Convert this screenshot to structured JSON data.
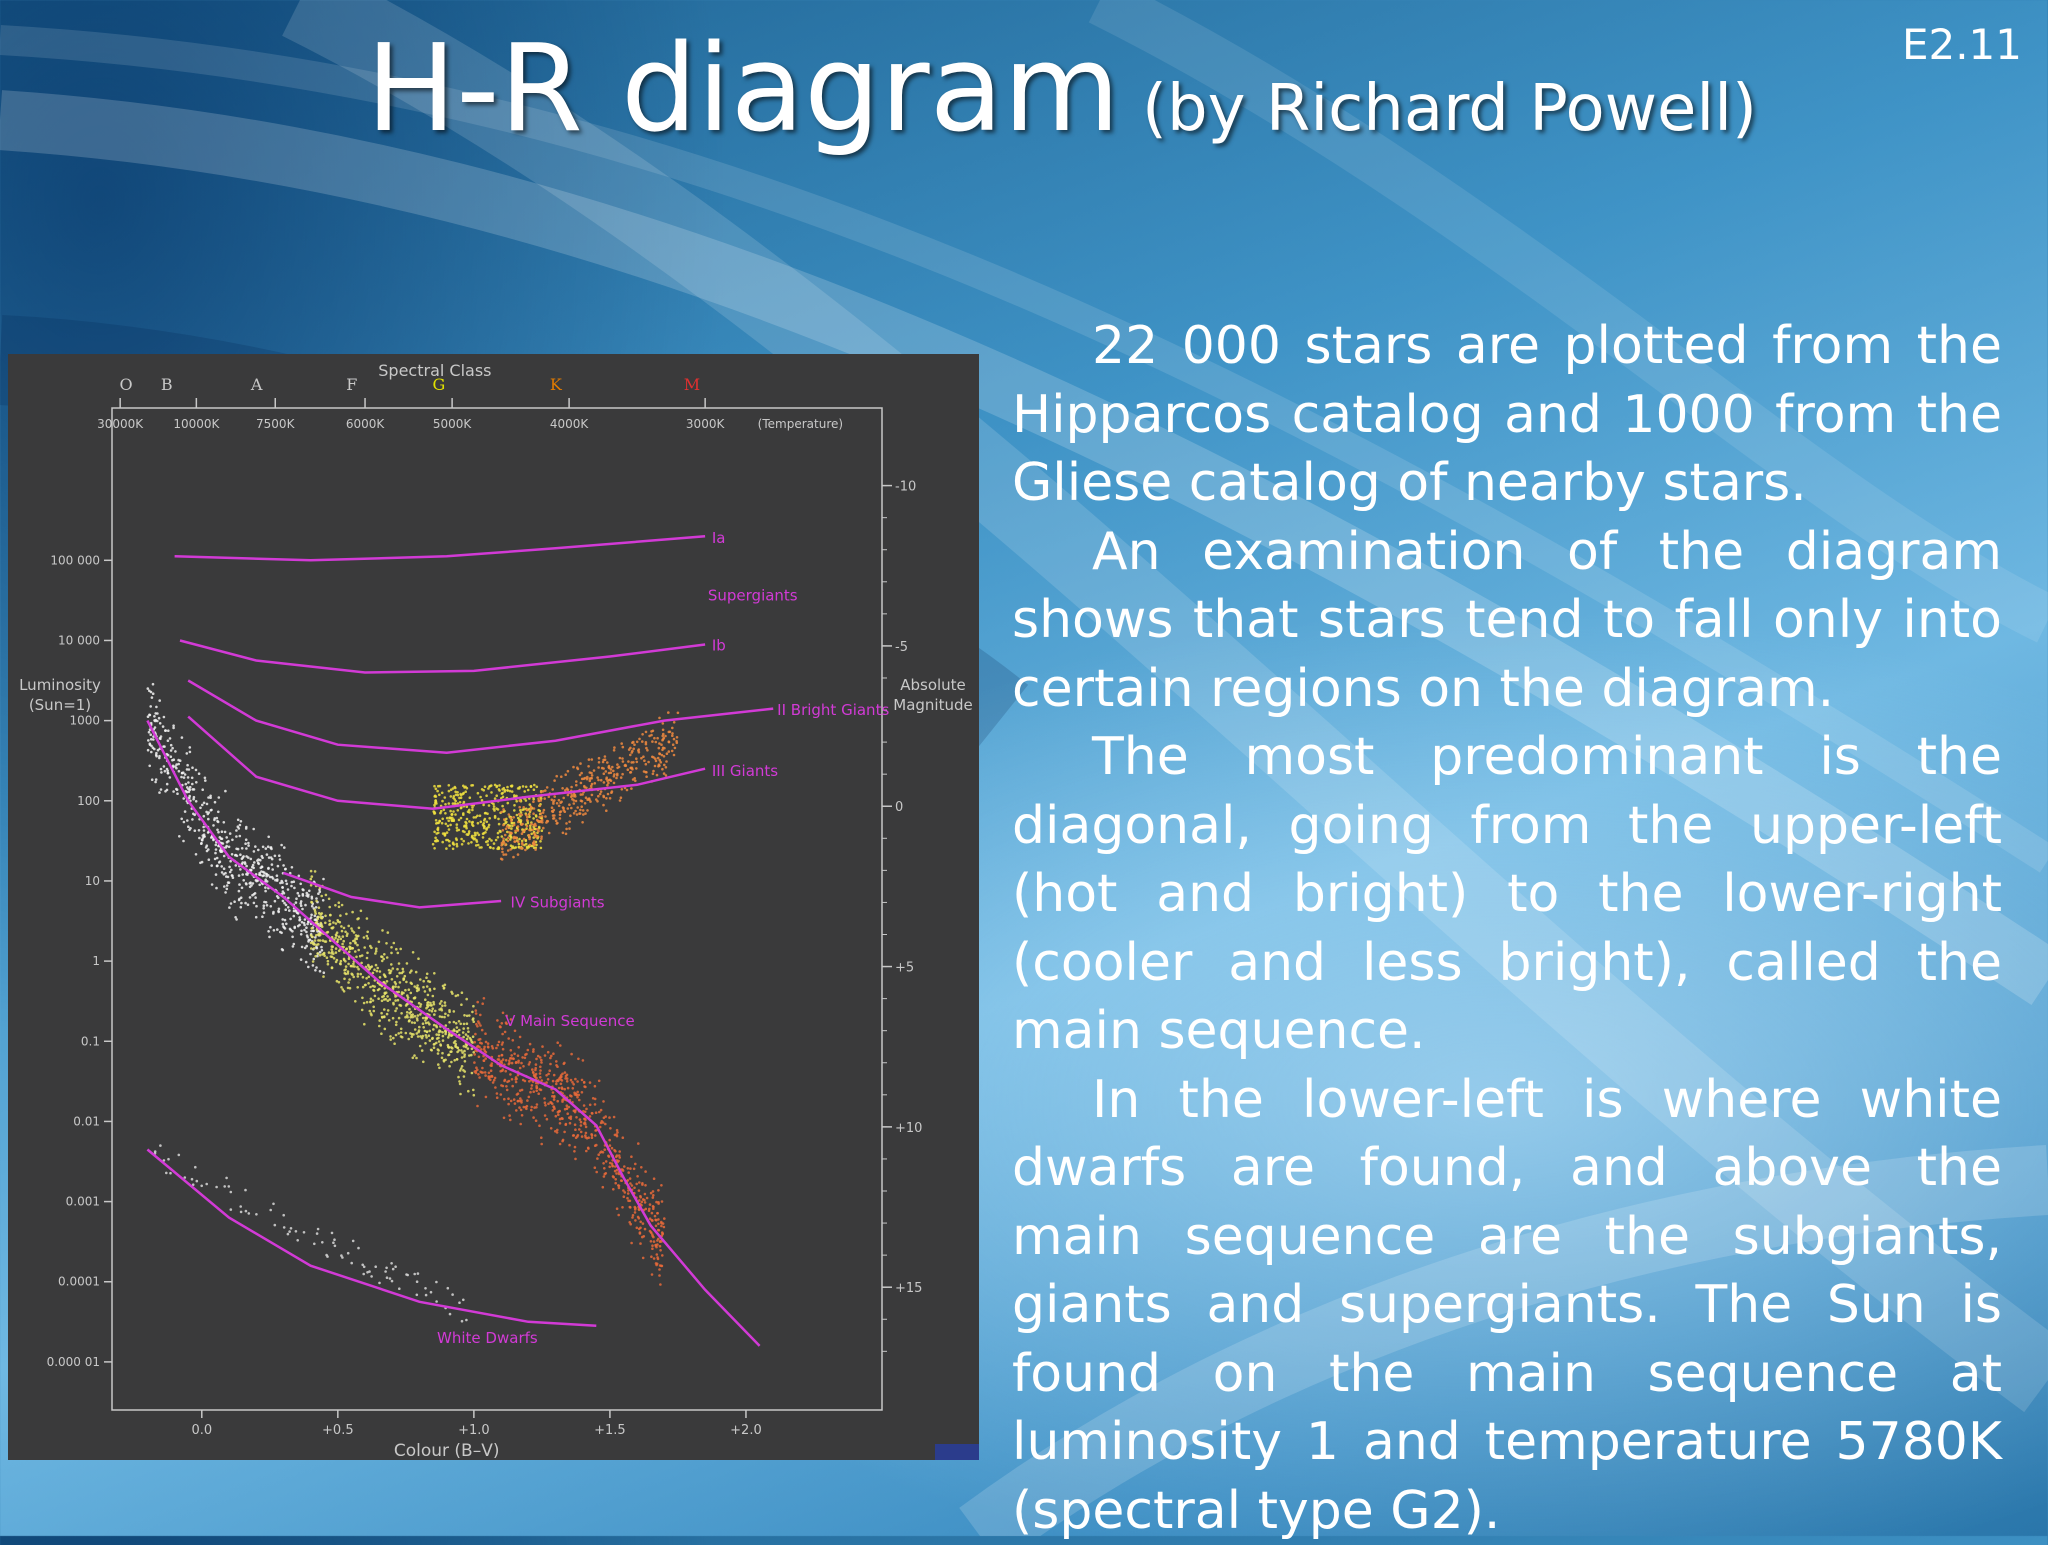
{
  "slide": {
    "id": "E2.11",
    "title": "H-R diagram",
    "subtitle": "(by Richard Powell)"
  },
  "description": [
    "22 000 stars are plotted from the Hipparcos catalog and 1000 from the Gliese catalog of nearby stars.",
    "An examination of the diagram shows that stars tend to fall only into certain regions on the diagram.",
    "The most predominant is the diagonal, going from the upper-left (hot and bright) to the lower-right (cooler and less bright), called the main sequence.",
    "In the lower-left is where white dwarfs are found, and above the main sequence are the subgiants, giants and supergiants. The Sun is found on the main sequence at luminosity 1 and temperature 5780K (spectral type G2)."
  ],
  "colors": {
    "panel": "#3a3a3b",
    "axis": "#c8c8c8",
    "curve": "#d23ad6",
    "region_label": "#d23ad6",
    "spectral_letters": [
      "#c8c8c8",
      "#c8c8c8",
      "#c8c8c8",
      "#c8c8c8",
      "#e0e000",
      "#e07a00",
      "#e03030"
    ]
  },
  "chart_data": {
    "type": "scatter",
    "title": "Spectral Class",
    "xlabel": "Colour (B–V)",
    "ylabel": "Luminosity (Sun=1)",
    "y2label": "Absolute Magnitude",
    "xlim": [
      -0.33,
      2.5
    ],
    "ylim_log10": [
      -5.6,
      6.9
    ],
    "grid": false,
    "spectral_classes": [
      {
        "label": "O",
        "x": -0.33
      },
      {
        "label": "B",
        "x": -0.18
      },
      {
        "label": "A",
        "x": 0.15
      },
      {
        "label": "F",
        "x": 0.5
      },
      {
        "label": "G",
        "x": 0.82
      },
      {
        "label": "K",
        "x": 1.25
      },
      {
        "label": "M",
        "x": 1.75
      }
    ],
    "temperature_ticks": [
      {
        "label": "30000K",
        "x": -0.3
      },
      {
        "label": "10000K",
        "x": -0.02
      },
      {
        "label": "7500K",
        "x": 0.27
      },
      {
        "label": "6000K",
        "x": 0.6
      },
      {
        "label": "5000K",
        "x": 0.92
      },
      {
        "label": "4000K",
        "x": 1.35
      },
      {
        "label": "3000K",
        "x": 1.85
      }
    ],
    "temperature_axis_label": "(Temperature)",
    "luminosity_ticks": [
      {
        "label": "100 000",
        "log10": 5
      },
      {
        "label": "10 000",
        "log10": 4
      },
      {
        "label": "1000",
        "log10": 3
      },
      {
        "label": "100",
        "log10": 2
      },
      {
        "label": "10",
        "log10": 1
      },
      {
        "label": "1",
        "log10": 0
      },
      {
        "label": "0.1",
        "log10": -1
      },
      {
        "label": "0.01",
        "log10": -2
      },
      {
        "label": "0.001",
        "log10": -3
      },
      {
        "label": "0.0001",
        "log10": -4
      },
      {
        "label": "0.000 01",
        "log10": -5
      }
    ],
    "magnitude_ticks": [
      {
        "label": "-10",
        "mag": -10
      },
      {
        "label": "-5",
        "mag": -5
      },
      {
        "label": "0",
        "mag": 0
      },
      {
        "label": "+5",
        "mag": 5
      },
      {
        "label": "+10",
        "mag": 10
      },
      {
        "label": "+15",
        "mag": 15
      }
    ],
    "colour_ticks": [
      {
        "label": "0.0",
        "x": 0.0
      },
      {
        "label": "+0.5",
        "x": 0.5
      },
      {
        "label": "+1.0",
        "x": 1.0
      },
      {
        "label": "+1.5",
        "x": 1.5
      },
      {
        "label": "+2.0",
        "x": 2.0
      }
    ],
    "series": [
      {
        "name": "Ia",
        "label": "Ia",
        "points": [
          [
            -0.1,
            5.05
          ],
          [
            0.4,
            5.0
          ],
          [
            0.9,
            5.05
          ],
          [
            1.3,
            5.15
          ],
          [
            1.85,
            5.3
          ]
        ]
      },
      {
        "name": "Ib",
        "label": "Ib",
        "points": [
          [
            -0.08,
            4.0
          ],
          [
            0.2,
            3.75
          ],
          [
            0.6,
            3.6
          ],
          [
            1.0,
            3.62
          ],
          [
            1.5,
            3.8
          ],
          [
            1.85,
            3.95
          ]
        ]
      },
      {
        "name": "II Bright Giants",
        "label": "II Bright Giants",
        "points": [
          [
            -0.05,
            3.5
          ],
          [
            0.2,
            3.0
          ],
          [
            0.5,
            2.7
          ],
          [
            0.9,
            2.6
          ],
          [
            1.3,
            2.75
          ],
          [
            1.7,
            3.0
          ],
          [
            2.1,
            3.15
          ]
        ]
      },
      {
        "name": "III Giants",
        "label": "III   Giants",
        "points": [
          [
            -0.05,
            3.05
          ],
          [
            0.2,
            2.3
          ],
          [
            0.5,
            2.0
          ],
          [
            0.85,
            1.9
          ],
          [
            1.2,
            2.05
          ],
          [
            1.6,
            2.2
          ],
          [
            1.85,
            2.4
          ]
        ]
      },
      {
        "name": "IV Subgiants",
        "label": "IV Subgiants",
        "points": [
          [
            0.3,
            1.1
          ],
          [
            0.55,
            0.8
          ],
          [
            0.8,
            0.67
          ],
          [
            1.1,
            0.75
          ]
        ]
      },
      {
        "name": "V Main Sequence",
        "label": "V Main Sequence",
        "points": [
          [
            -0.2,
            3.0
          ],
          [
            -0.05,
            2.0
          ],
          [
            0.1,
            1.3
          ],
          [
            0.3,
            0.8
          ],
          [
            0.5,
            0.2
          ],
          [
            0.65,
            -0.25
          ],
          [
            0.9,
            -0.85
          ],
          [
            1.1,
            -1.3
          ],
          [
            1.3,
            -1.6
          ],
          [
            1.45,
            -2.05
          ],
          [
            1.55,
            -2.7
          ],
          [
            1.65,
            -3.3
          ],
          [
            1.85,
            -4.1
          ],
          [
            2.05,
            -4.8
          ]
        ]
      },
      {
        "name": "White Dwarfs",
        "label": "White Dwarfs",
        "points": [
          [
            -0.2,
            -2.35
          ],
          [
            0.1,
            -3.2
          ],
          [
            0.4,
            -3.8
          ],
          [
            0.8,
            -4.25
          ],
          [
            1.2,
            -4.5
          ],
          [
            1.45,
            -4.55
          ]
        ]
      }
    ],
    "star_clouds": [
      {
        "region": "main sequence upper",
        "color": "#f2f2f2",
        "x": [
          -0.25,
          0.45
        ],
        "log10": [
          3.1,
          0.6
        ]
      },
      {
        "region": "main sequence middle",
        "color": "#e8e46a",
        "x": [
          0.4,
          1.0
        ],
        "log10": [
          0.4,
          -0.9
        ]
      },
      {
        "region": "main sequence lower",
        "color": "#e86a3a",
        "x": [
          1.0,
          1.7
        ],
        "log10": [
          -0.9,
          -3.3
        ]
      },
      {
        "region": "red clump giants",
        "color": "#f0e040",
        "x": [
          0.85,
          1.25
        ],
        "log10": [
          2.2,
          1.4
        ]
      },
      {
        "region": "giant branch",
        "color": "#f08a40",
        "x": [
          1.1,
          1.75
        ],
        "log10": [
          1.5,
          2.8
        ]
      },
      {
        "region": "white dwarfs",
        "color": "#d8d8d8",
        "x": [
          -0.2,
          1.0
        ],
        "log10": [
          -2.4,
          -4.4
        ]
      }
    ]
  }
}
